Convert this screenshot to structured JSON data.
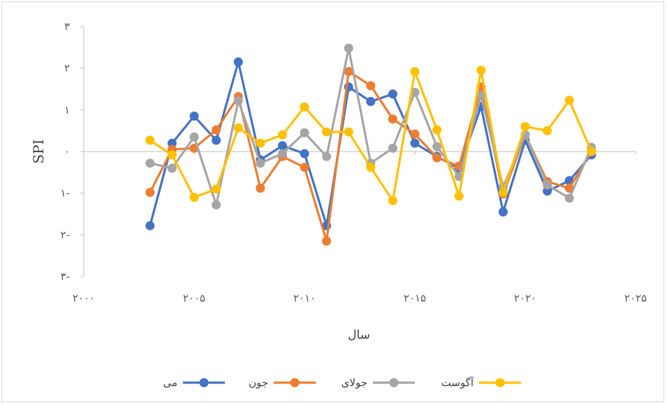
{
  "chart_data": {
    "type": "line",
    "title": "",
    "xlabel": "سال",
    "ylabel": "SPI",
    "xlim": [
      2000,
      2025
    ],
    "ylim": [
      -3,
      3
    ],
    "xticks": [
      2000,
      2005,
      2010,
      2015,
      2020,
      2025
    ],
    "yticks": [
      -3,
      -2,
      -1,
      0,
      1,
      2,
      3
    ],
    "xtick_labels": [
      "۲۰۰۰",
      "۲۰۰۵",
      "۲۰۱۰",
      "۲۰۱۵",
      "۲۰۲۰",
      "۲۰۲۵"
    ],
    "ytick_labels": [
      "۳-",
      "۲-",
      "۱-",
      "۰",
      "۱",
      "۲",
      "۳"
    ],
    "grid": false,
    "legend_position": "bottom",
    "x": [
      2003,
      2004,
      2005,
      2006,
      2007,
      2008,
      2009,
      2010,
      2011,
      2012,
      2013,
      2014,
      2015,
      2016,
      2017,
      2018,
      2019,
      2020,
      2021,
      2022,
      2023
    ],
    "series": [
      {
        "name": "می",
        "color": "#4472C4",
        "values": [
          -1.78,
          0.2,
          0.85,
          0.27,
          2.15,
          -0.2,
          0.14,
          -0.05,
          -1.78,
          1.55,
          1.2,
          1.38,
          0.2,
          -0.12,
          -0.4,
          1.08,
          -1.45,
          0.27,
          -0.95,
          -0.7,
          -0.08
        ]
      },
      {
        "name": "جون",
        "color": "#ED7D31",
        "values": [
          -0.98,
          0.05,
          0.08,
          0.52,
          1.32,
          -0.88,
          -0.12,
          -0.38,
          -2.15,
          1.92,
          1.58,
          0.78,
          0.42,
          -0.15,
          -0.35,
          1.55,
          -1.02,
          0.4,
          -0.72,
          -0.88,
          0.0
        ]
      },
      {
        "name": "جولای",
        "color": "#A5A5A5",
        "values": [
          -0.28,
          -0.4,
          0.35,
          -1.28,
          1.22,
          -0.28,
          -0.05,
          0.45,
          -0.12,
          2.48,
          -0.28,
          0.08,
          1.42,
          0.12,
          -0.6,
          1.35,
          -0.85,
          0.4,
          -0.8,
          -1.12,
          0.1
        ]
      },
      {
        "name": "آگوست",
        "color": "#FFC000",
        "values": [
          0.27,
          -0.08,
          -1.1,
          -0.9,
          0.57,
          0.2,
          0.4,
          1.07,
          0.47,
          0.47,
          -0.38,
          -1.18,
          1.92,
          0.52,
          -1.07,
          1.95,
          -0.98,
          0.6,
          0.5,
          1.23,
          0.0
        ]
      }
    ]
  }
}
